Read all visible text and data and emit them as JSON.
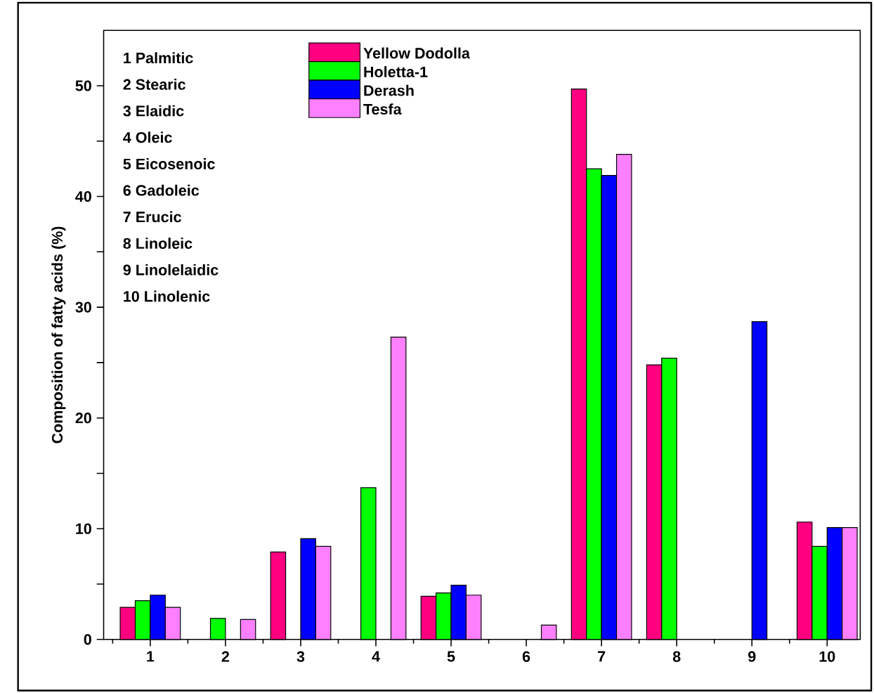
{
  "chart_data": {
    "type": "bar",
    "ylabel": "Composition of fatty acids (%)",
    "categories": [
      "1",
      "2",
      "3",
      "4",
      "5",
      "6",
      "7",
      "8",
      "9",
      "10"
    ],
    "series": [
      {
        "name": "Yellow Dodolla",
        "color": "#ff0080",
        "values": [
          2.9,
          null,
          7.9,
          null,
          3.9,
          null,
          49.7,
          24.8,
          null,
          10.6
        ]
      },
      {
        "name": "Holetta-1",
        "color": "#00ff00",
        "values": [
          3.5,
          1.9,
          null,
          13.7,
          4.2,
          null,
          42.5,
          25.4,
          null,
          8.4
        ]
      },
      {
        "name": "Derash",
        "color": "#0000ff",
        "values": [
          4.0,
          null,
          9.1,
          null,
          4.9,
          null,
          41.9,
          null,
          28.7,
          10.1
        ]
      },
      {
        "name": "Tesfa",
        "color": "#ff80ff",
        "values": [
          2.9,
          1.8,
          8.4,
          27.3,
          4.0,
          1.3,
          43.8,
          null,
          null,
          10.1
        ]
      }
    ],
    "ylim": [
      0,
      55
    ],
    "yticks": [
      0,
      {
        "value": 5,
        "label": null
      },
      10,
      {
        "value": 15,
        "label": null
      },
      20,
      {
        "value": 25,
        "label": null
      },
      30,
      {
        "value": 35,
        "label": null
      },
      40,
      {
        "value": 45,
        "label": null
      },
      50
    ],
    "annotations": [
      "1 Palmitic",
      "2 Stearic",
      "3 Elaidic",
      "4 Oleic",
      "5 Eicosenoic",
      "6 Gadoleic",
      "7 Erucic",
      "8 Linoleic",
      "9 Linolelaidic",
      "10 Linolenic"
    ],
    "legend": "top left",
    "grid": false
  }
}
